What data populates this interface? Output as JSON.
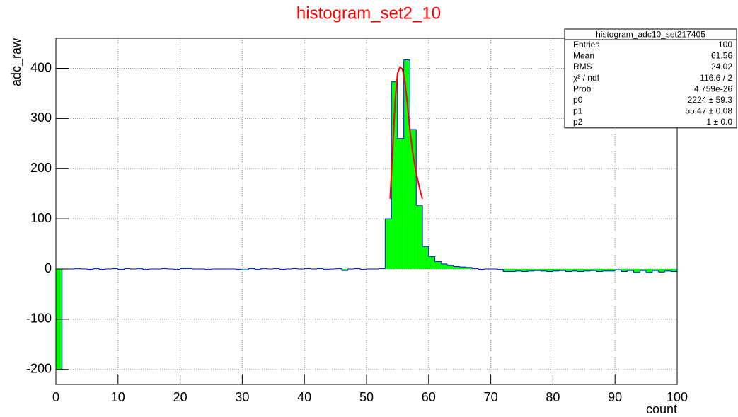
{
  "chart_data": {
    "type": "histogram",
    "title": "histogram_set2_10",
    "xlabel": "count",
    "ylabel": "adc_raw",
    "bins": [
      0,
      1,
      2,
      3,
      4,
      5,
      6,
      7,
      8,
      9,
      10,
      11,
      12,
      13,
      14,
      15,
      16,
      17,
      18,
      19,
      20,
      21,
      22,
      23,
      24,
      25,
      26,
      27,
      28,
      29,
      30,
      31,
      32,
      33,
      34,
      35,
      36,
      37,
      38,
      39,
      40,
      41,
      42,
      43,
      44,
      45,
      46,
      47,
      48,
      49,
      50,
      51,
      52,
      53,
      54,
      55,
      56,
      57,
      58,
      59,
      60,
      61,
      62,
      63,
      64,
      65,
      66,
      67,
      68,
      69,
      70,
      71,
      72,
      73,
      74,
      75,
      76,
      77,
      78,
      79,
      80,
      81,
      82,
      83,
      84,
      85,
      86,
      87,
      88,
      89,
      90,
      91,
      92,
      93,
      94,
      95,
      96,
      97,
      98,
      99,
      100
    ],
    "values": [
      -200,
      0,
      0,
      1,
      0,
      -1,
      1,
      -1,
      0,
      1,
      -1,
      1,
      0,
      1,
      -1,
      0,
      0,
      1,
      0,
      -1,
      1,
      1,
      0,
      0,
      -1,
      0,
      0,
      0,
      0,
      -1,
      -2,
      1,
      -1,
      1,
      0,
      1,
      -1,
      0,
      1,
      0,
      1,
      0,
      1,
      -1,
      0,
      1,
      -3,
      0,
      1,
      -1,
      0,
      0,
      1,
      100,
      373,
      260,
      417,
      278,
      127,
      45,
      25,
      15,
      10,
      7,
      5,
      4,
      3,
      1,
      -1,
      0,
      0,
      -1,
      -5,
      -5,
      -4,
      -5,
      -4,
      -3,
      -4,
      -5,
      -4,
      -3,
      -5,
      -4,
      -5,
      -4,
      -3,
      -5,
      -4,
      -4,
      -2,
      -5,
      -3,
      -7,
      -3,
      -7,
      -3,
      -6,
      -4,
      -5
    ],
    "color": "#00ff00",
    "edge_color": "#0000ff",
    "fit": {
      "type": "line",
      "color": "#ff0000",
      "x": [
        53.8,
        54.2,
        54.6,
        55.0,
        55.4,
        55.8,
        56.2,
        56.6,
        57.0,
        57.4,
        57.8,
        58.2,
        58.6,
        59.0
      ],
      "values": [
        140,
        235,
        335,
        390,
        403,
        398,
        372,
        325,
        275,
        235,
        205,
        180,
        158,
        140
      ]
    },
    "xlim": [
      0,
      100
    ],
    "xticks": [
      0,
      10,
      20,
      30,
      40,
      50,
      60,
      70,
      80,
      90,
      100
    ],
    "ylim": [
      -230,
      460
    ],
    "yticks": [
      -200,
      -100,
      0,
      100,
      200,
      300,
      400
    ],
    "grid": true
  },
  "stats_box": {
    "title": "histogram_adc10_set217405",
    "rows": [
      [
        "Entries",
        "100"
      ],
      [
        "Mean",
        "61.56"
      ],
      [
        "RMS",
        "24.02"
      ],
      [
        "χ² / ndf",
        "116.6 / 2"
      ],
      [
        "Prob",
        "4.759e-26"
      ],
      [
        "p0",
        "2224 ± 59.3"
      ],
      [
        "p1",
        "55.47 ± 0.08"
      ],
      [
        "p2",
        "1 ± 0.0"
      ]
    ]
  }
}
